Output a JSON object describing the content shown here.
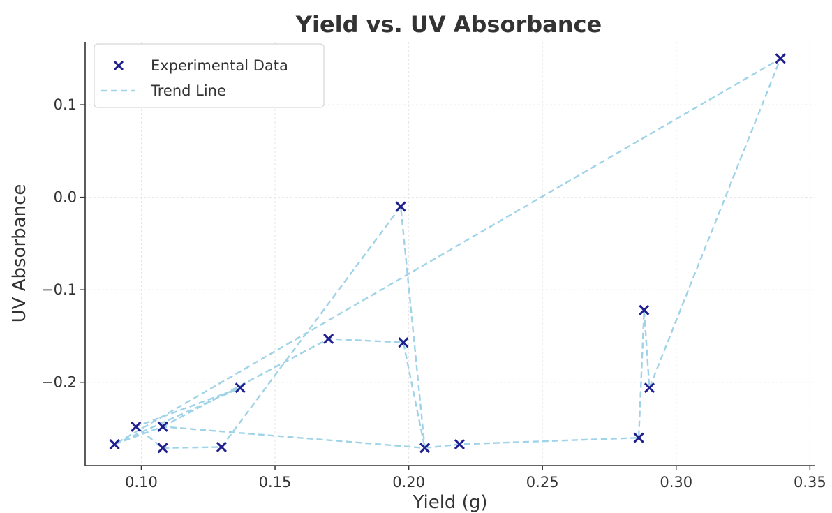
{
  "chart_data": {
    "type": "scatter",
    "title": "Yield vs. UV Absorbance",
    "xlabel": "Yield (g)",
    "ylabel": "UV Absorbance",
    "xlim": [
      0.079,
      0.352
    ],
    "ylim": [
      -0.29,
      0.168
    ],
    "xticks": [
      0.1,
      0.15,
      0.2,
      0.25,
      0.3,
      0.35
    ],
    "xtick_labels": [
      "0.10",
      "0.15",
      "0.20",
      "0.25",
      "0.30",
      "0.35"
    ],
    "yticks": [
      0.1,
      0.0,
      -0.1,
      -0.2
    ],
    "ytick_labels": [
      "0.1",
      "0.0",
      "−0.1",
      "−0.2"
    ],
    "grid": true,
    "legend_position": "top-left",
    "series": [
      {
        "name": "Experimental Data",
        "kind": "scatter",
        "marker": "x",
        "color": "#1f1f8f",
        "x": [
          0.09,
          0.108,
          0.137,
          0.098,
          0.108,
          0.13,
          0.197,
          0.198,
          0.17,
          0.206,
          0.219,
          0.286,
          0.288,
          0.29,
          0.339
        ],
        "y": [
          -0.267,
          -0.248,
          -0.206,
          -0.248,
          -0.271,
          -0.27,
          -0.01,
          -0.157,
          -0.153,
          -0.271,
          -0.267,
          -0.26,
          -0.122,
          -0.206,
          0.15
        ]
      },
      {
        "name": "Trend Line",
        "kind": "line",
        "style": "dashed",
        "color": "#9fd3e8",
        "x": [
          0.09,
          0.137,
          0.098,
          0.108,
          0.13,
          0.197,
          0.206,
          0.108,
          0.09,
          0.339,
          0.29,
          0.288,
          0.286,
          0.219,
          0.206,
          0.198,
          0.17,
          0.108
        ],
        "y": [
          -0.267,
          -0.206,
          -0.248,
          -0.271,
          -0.27,
          -0.01,
          -0.271,
          -0.248,
          -0.267,
          0.15,
          -0.206,
          -0.122,
          -0.26,
          -0.267,
          -0.271,
          -0.157,
          -0.153,
          -0.248
        ]
      }
    ]
  }
}
